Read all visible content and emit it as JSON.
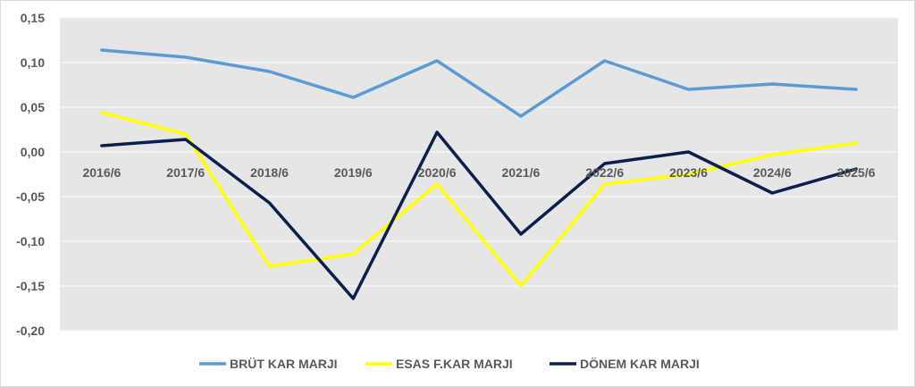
{
  "chart_data": {
    "type": "line",
    "title": "",
    "xlabel": "",
    "ylabel": "",
    "categories": [
      "2016/6",
      "2017/6",
      "2018/6",
      "2019/6",
      "2020/6",
      "2021/6",
      "2022/6",
      "2023/6",
      "2024/6",
      "2025/6"
    ],
    "ylim": [
      -0.2,
      0.15
    ],
    "yticks": [
      0.15,
      0.1,
      0.05,
      0.0,
      -0.05,
      -0.1,
      -0.15,
      -0.2
    ],
    "ytick_labels": [
      "0,15",
      "0,10",
      "0,05",
      "0,00",
      "-0,05",
      "-0,10",
      "-0,15",
      "-0,20"
    ],
    "grid": true,
    "plot_background": "#e6e6e6",
    "legend_position": "bottom",
    "series": [
      {
        "name": "BRÜT KAR MARJI",
        "color": "#5b9bd5",
        "values": [
          0.114,
          0.106,
          0.09,
          0.061,
          0.102,
          0.04,
          0.102,
          0.07,
          0.076,
          0.07
        ]
      },
      {
        "name": "ESAS F.KAR MARJI",
        "color": "#ffff00",
        "values": [
          0.044,
          0.02,
          -0.128,
          -0.114,
          -0.036,
          -0.15,
          -0.036,
          -0.025,
          -0.003,
          0.01
        ]
      },
      {
        "name": "DÖNEM KAR MARJI",
        "color": "#0b1f4f",
        "values": [
          0.007,
          0.014,
          -0.057,
          -0.164,
          0.022,
          -0.092,
          -0.013,
          0.0,
          -0.046,
          -0.019
        ]
      }
    ]
  }
}
